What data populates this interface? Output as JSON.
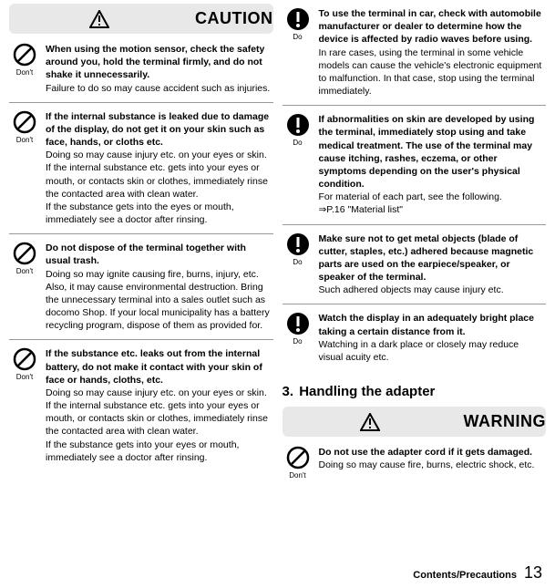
{
  "left": {
    "alert": "CAUTION",
    "items": [
      {
        "icon": "dont",
        "bold": "When using the motion sensor, check the safety around you, hold the terminal firmly, and do not shake it unnecessarily.",
        "body": "Failure to do so may cause accident such as injuries."
      },
      {
        "icon": "dont",
        "bold": "If the internal substance is leaked due to damage of the display, do not get it on your skin such as face, hands, or cloths etc.",
        "body": "Doing so may cause injury etc. on your eyes or skin.\nIf the internal substance etc. gets into your eyes or mouth, or contacts skin or clothes, immediately rinse the contacted area with clean water.\nIf the substance gets into the eyes or mouth, immediately see a doctor after rinsing."
      },
      {
        "icon": "dont",
        "bold": "Do not dispose of the terminal together with usual trash.",
        "body": "Doing so may ignite causing fire, burns, injury, etc. Also, it may cause environmental destruction. Bring the unnecessary terminal into a sales outlet such as docomo Shop. If your local municipality has a battery recycling program, dispose of them as provided for."
      },
      {
        "icon": "dont",
        "bold": "If the substance etc. leaks out from the internal battery, do not make it contact with your skin of face or hands, cloths, etc.",
        "body": "Doing so may cause injury etc. on your eyes or skin.\nIf the internal substance etc. gets into your eyes or mouth, or contacts skin or clothes, immediately rinse the contacted area with clean water.\nIf the substance gets into your eyes or mouth, immediately see a doctor after rinsing."
      }
    ]
  },
  "right": {
    "items": [
      {
        "icon": "do",
        "bold": "To use the terminal in car, check with automobile manufacturer or dealer to determine how the device is affected by radio waves before using.",
        "body": "In rare cases, using the terminal in some vehicle models can cause the vehicle's electronic equipment to malfunction. In that case, stop using the terminal immediately."
      },
      {
        "icon": "do",
        "bold": "If abnormalities on skin are developed by using the terminal, immediately stop using and take medical treatment. The use of the terminal may cause itching, rashes, eczema, or other symptoms depending on the user's physical condition.",
        "body": "For material of each part, see the following.\n⇒P.16 \"Material list\""
      },
      {
        "icon": "do",
        "bold": "Make sure not to get metal objects (blade of cutter, staples, etc.) adhered because magnetic parts are used on the earpiece/speaker, or speaker of the terminal.",
        "body": "Such adhered objects may cause injury etc."
      },
      {
        "icon": "do",
        "bold": "Watch the display in an adequately bright place taking a certain distance from it.",
        "body": "Watching in a dark place or closely may reduce visual acuity etc."
      }
    ],
    "section_num": "3.",
    "section_title": "Handling the adapter",
    "alert2": "WARNING",
    "items2": [
      {
        "icon": "dont",
        "bold": "Do not use the adapter cord if it gets damaged.",
        "body": "Doing so may cause fire, burns, electric shock, etc."
      }
    ]
  },
  "footer": {
    "label": "Contents/Precautions",
    "page": "13"
  },
  "icon_labels": {
    "dont": "Don't",
    "do": "Do"
  }
}
